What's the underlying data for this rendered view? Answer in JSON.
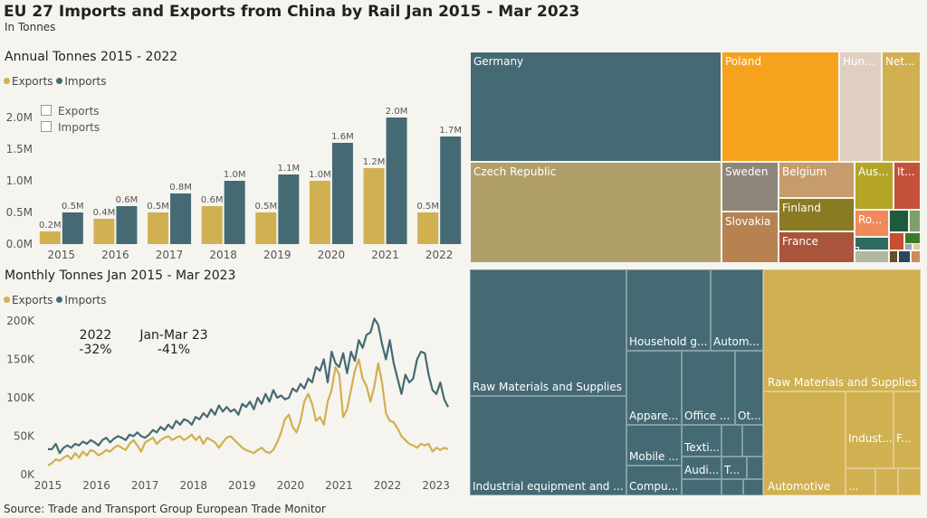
{
  "title": "EU 27 Imports and Exports from China by Rail Jan 2015 - Mar 2023",
  "subtitle": "In Tonnes",
  "source": "Source: Trade and Transport Group European Trade Monitor",
  "colors": {
    "exports": "#d0b050",
    "imports": "#456a73"
  },
  "annual": {
    "title": "Annual Tonnes 2015 - 2022",
    "legend": [
      "Exports",
      "Imports"
    ],
    "checkboxes": [
      "Exports",
      "Imports"
    ],
    "chart_data": {
      "type": "bar",
      "categories": [
        "2015",
        "2016",
        "2017",
        "2018",
        "2019",
        "2020",
        "2021",
        "2022"
      ],
      "series": [
        {
          "name": "Exports",
          "values": [
            0.2,
            0.4,
            0.5,
            0.6,
            0.5,
            1.0,
            1.2,
            0.5
          ],
          "labels": [
            "0.2M",
            "0.4M",
            "0.5M",
            "0.6M",
            "0.5M",
            "1.0M",
            "1.2M",
            "0.5M"
          ]
        },
        {
          "name": "Imports",
          "values": [
            0.5,
            0.6,
            0.8,
            1.0,
            1.1,
            1.6,
            2.0,
            1.7
          ],
          "labels": [
            "0.5M",
            "0.6M",
            "0.8M",
            "1.0M",
            "1.1M",
            "1.6M",
            "2.0M",
            "1.7M"
          ]
        }
      ],
      "yticks": [
        "0.0M",
        "0.5M",
        "1.0M",
        "1.5M",
        "2.0M"
      ],
      "ylim": [
        0,
        2.0
      ]
    }
  },
  "monthly": {
    "title": "Monthly Tonnes Jan 2015 - Mar 2023",
    "legend": [
      "Exports",
      "Imports"
    ],
    "annotations": [
      {
        "label": "2022",
        "value": "-32%"
      },
      {
        "label": "Jan-Mar 23",
        "value": "-41%"
      }
    ],
    "chart_data": {
      "type": "line",
      "xticks": [
        "2015",
        "2016",
        "2017",
        "2018",
        "2019",
        "2020",
        "2021",
        "2022",
        "2023"
      ],
      "yticks": [
        "0K",
        "50K",
        "100K",
        "150K",
        "200K"
      ],
      "ylim": [
        0,
        200
      ],
      "x_start": "2015-01",
      "series": [
        {
          "name": "Imports",
          "values": [
            33,
            33,
            40,
            28,
            35,
            38,
            35,
            40,
            38,
            43,
            40,
            45,
            42,
            38,
            45,
            48,
            42,
            47,
            50,
            48,
            45,
            52,
            50,
            55,
            50,
            48,
            52,
            58,
            55,
            62,
            58,
            65,
            60,
            70,
            65,
            72,
            70,
            65,
            75,
            72,
            80,
            75,
            85,
            78,
            90,
            82,
            88,
            82,
            85,
            78,
            92,
            88,
            95,
            85,
            100,
            92,
            105,
            95,
            110,
            100,
            103,
            98,
            100,
            112,
            108,
            118,
            112,
            125,
            120,
            140,
            135,
            150,
            120,
            160,
            145,
            140,
            158,
            132,
            160,
            148,
            175,
            165,
            182,
            185,
            203,
            195,
            170,
            150,
            175,
            145,
            125,
            105,
            130,
            120,
            125,
            150,
            160,
            158,
            130,
            110,
            105,
            120,
            98,
            88
          ]
        },
        {
          "name": "Exports",
          "values": [
            12,
            15,
            20,
            18,
            22,
            25,
            20,
            28,
            22,
            30,
            25,
            32,
            30,
            25,
            28,
            32,
            30,
            35,
            38,
            35,
            32,
            40,
            45,
            38,
            30,
            42,
            45,
            48,
            40,
            45,
            48,
            50,
            45,
            48,
            50,
            45,
            48,
            52,
            45,
            50,
            40,
            48,
            45,
            42,
            35,
            42,
            48,
            50,
            45,
            40,
            35,
            32,
            30,
            28,
            32,
            35,
            30,
            28,
            32,
            42,
            55,
            72,
            78,
            62,
            55,
            70,
            95,
            105,
            92,
            70,
            75,
            65,
            95,
            110,
            140,
            130,
            75,
            85,
            110,
            135,
            150,
            125,
            115,
            95,
            115,
            145,
            120,
            80,
            70,
            68,
            60,
            50,
            45,
            40,
            38,
            35,
            40,
            38,
            40,
            30,
            35,
            32,
            35,
            33
          ]
        }
      ]
    }
  },
  "treemap_countries": [
    {
      "name": "Germany",
      "color": "#456a73"
    },
    {
      "name": "Poland",
      "color": "#f7a21f"
    },
    {
      "name": "Hun...",
      "color": "#dfcfc3"
    },
    {
      "name": "Net...",
      "color": "#d0b050"
    },
    {
      "name": "Czech Republic",
      "color": "#b19f6a"
    },
    {
      "name": "Sweden",
      "color": "#8e857b"
    },
    {
      "name": "Belgium",
      "color": "#c79c6c"
    },
    {
      "name": "Aus...",
      "color": "#b4a526"
    },
    {
      "name": "It...",
      "color": "#c4513b"
    },
    {
      "name": "Slovakia",
      "color": "#b78250"
    },
    {
      "name": "Finland",
      "color": "#8a7a22"
    },
    {
      "name": "France",
      "color": "#a8553c"
    },
    {
      "name": "Ro...",
      "color": "#f08a5a"
    },
    {
      "name": "",
      "color": "#1f5a3a"
    },
    {
      "name": "",
      "color": "#7da06a"
    },
    {
      "name": "",
      "color": "#2e6b5e"
    },
    {
      "name": "",
      "color": "#c3502f"
    },
    {
      "name": "",
      "color": "#3a7a2a"
    },
    {
      "name": "",
      "color": "#b0b8a0"
    },
    {
      "name": "",
      "color": "#6a4a2a"
    },
    {
      "name": "",
      "color": "#244a5a"
    },
    {
      "name": "",
      "color": "#d08a5a"
    },
    {
      "name": "",
      "color": "#9aa8b4"
    },
    {
      "name": "",
      "color": "#e8c898"
    },
    {
      "name": "",
      "color": "#8a5a8a"
    }
  ],
  "treemap_products": {
    "imports": {
      "label": "Imports",
      "items": [
        "Raw Materials and Supplies",
        "Industrial equipment and ...",
        "Household g...",
        "Autom...",
        "Appare...",
        "Office ...",
        "Ot...",
        "Mobile ...",
        "Texti...",
        "Audi...",
        "T...",
        "Compu..."
      ]
    },
    "exports": {
      "label": "Exports",
      "items": [
        "Raw Materials and Supplies",
        "Automotive",
        "Indust...",
        "F...",
        "..."
      ]
    }
  }
}
